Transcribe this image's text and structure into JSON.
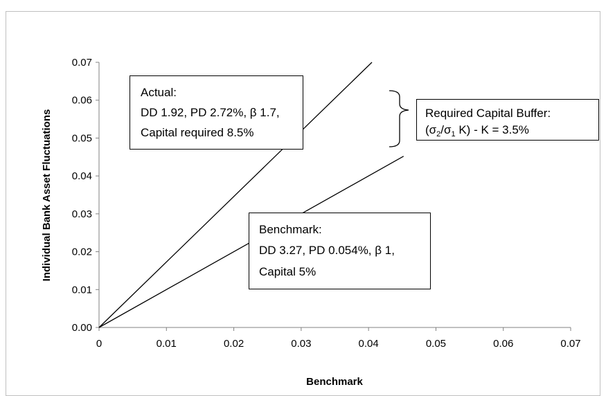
{
  "chart_data": {
    "type": "line",
    "xlabel": "Benchmark",
    "ylabel": "Individual Bank Asset Fluctuations",
    "xlim": [
      0,
      0.07
    ],
    "ylim": [
      0,
      0.07
    ],
    "x_ticks": [
      "0",
      "0.01",
      "0.02",
      "0.03",
      "0.04",
      "0.05",
      "0.06",
      "0.07"
    ],
    "y_ticks": [
      "0.00",
      "0.01",
      "0.02",
      "0.03",
      "0.04",
      "0.05",
      "0.06",
      "0.07"
    ],
    "grid": false,
    "legend": "none",
    "series": [
      {
        "x": [
          0,
          0.0405
        ],
        "y": [
          0,
          0.07
        ],
        "color": "#000000"
      },
      {
        "x": [
          0,
          0.0452
        ],
        "y": [
          0,
          0.0452
        ],
        "color": "#000000"
      }
    ],
    "annotations": {
      "actual": [
        "Actual:",
        "DD 1.92, PD 2.72%, β 1.7,",
        "Capital required 8.5%"
      ],
      "benchmark": [
        "Benchmark:",
        "DD 3.27, PD 0.054%, β 1,",
        "Capital 5%"
      ],
      "buffer": {
        "line1": "Required Capital Buffer:",
        "paren_open": "(σ",
        "sub1": "2",
        "slash": "/σ",
        "sub2": "1",
        "rest": " K) - K = 3.5%"
      }
    }
  }
}
